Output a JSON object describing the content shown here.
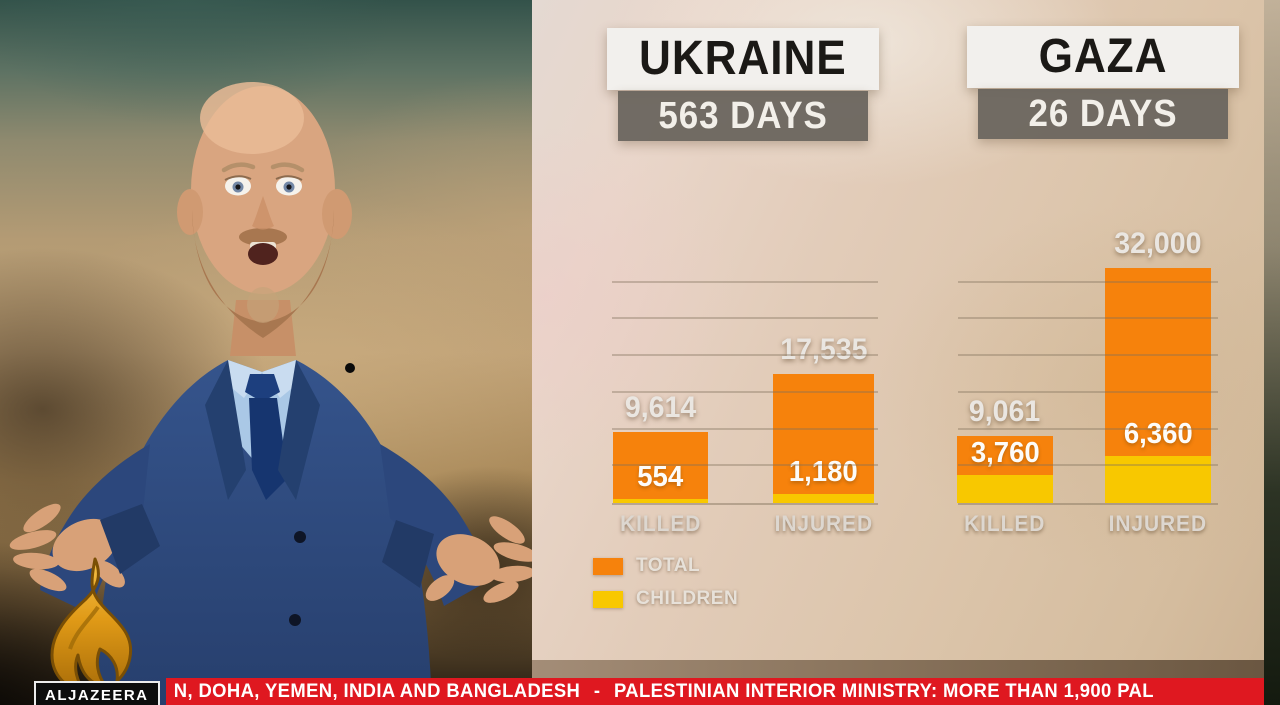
{
  "broadcast": {
    "logo_text": "ALJAZEERA",
    "ticker": {
      "segment1": "N, DOHA, YEMEN, INDIA AND BANGLADESH",
      "separator": "-",
      "segment2": "PALESTINIAN INTERIOR MINISTRY: MORE THAN 1,900 PAL",
      "bg_color": "#df1820",
      "text_color": "#ffffff"
    }
  },
  "legend": {
    "items": [
      {
        "label": "TOTAL",
        "color": "#f6820c"
      },
      {
        "label": "CHILDREN",
        "color": "#f8c800"
      }
    ]
  },
  "chart_data": [
    {
      "type": "bar",
      "title": "UKRAINE",
      "subtitle": "563 DAYS",
      "categories": [
        "KILLED",
        "INJURED"
      ],
      "series": [
        {
          "name": "TOTAL",
          "color": "#f6820c",
          "values": [
            9614,
            17535
          ],
          "labels": [
            "9,614",
            "17,535"
          ]
        },
        {
          "name": "CHILDREN",
          "color": "#f8c800",
          "values": [
            554,
            1180
          ],
          "labels": [
            "554",
            "1,180"
          ]
        }
      ],
      "ylim": [
        0,
        32000
      ],
      "gridline_step": 5000,
      "grid": true,
      "legend_position": "bottom-left"
    },
    {
      "type": "bar",
      "title": "GAZA",
      "subtitle": "26 DAYS",
      "categories": [
        "KILLED",
        "INJURED"
      ],
      "series": [
        {
          "name": "TOTAL",
          "color": "#f6820c",
          "values": [
            9061,
            32000
          ],
          "labels": [
            "9,061",
            "32,000"
          ]
        },
        {
          "name": "CHILDREN",
          "color": "#f8c800",
          "values": [
            3760,
            6360
          ],
          "labels": [
            "3,760",
            "6,360"
          ]
        }
      ],
      "ylim": [
        0,
        32000
      ],
      "gridline_step": 5000,
      "grid": true
    }
  ]
}
